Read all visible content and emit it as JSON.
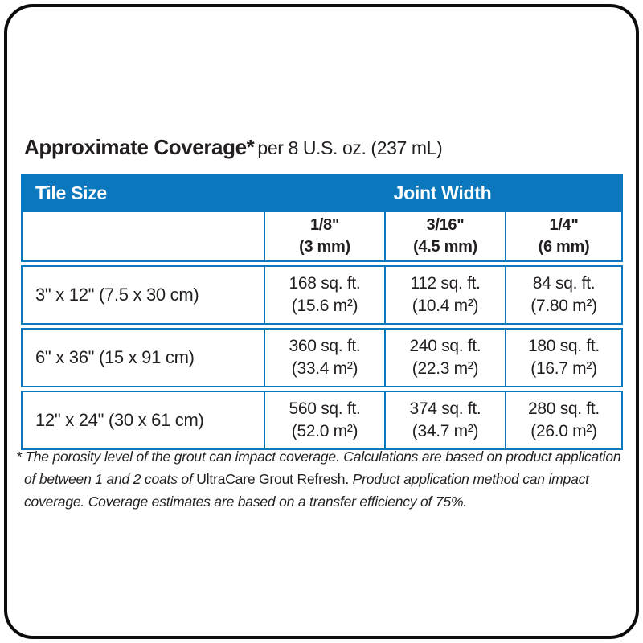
{
  "page": {
    "title_bold": "Approximate Coverage*",
    "title_rest": "per 8 U.S. oz. (237 mL)"
  },
  "colors": {
    "brand_blue": "#0b78bd",
    "header_text": "#ffffff",
    "body_text": "#231f20",
    "frame_border": "#0d0d0d"
  },
  "table": {
    "tile_size_header": "Tile Size",
    "joint_width_header": "Joint Width",
    "joint_widths": [
      {
        "inches": "1/8\"",
        "metric": "(3 mm)"
      },
      {
        "inches": "3/16\"",
        "metric": "(4.5 mm)"
      },
      {
        "inches": "1/4\"",
        "metric": "(6 mm)"
      }
    ],
    "rows": [
      {
        "tile": "3\" x 12\" (7.5 x 30 cm)",
        "coverage": [
          {
            "sqft": "168 sq. ft.",
            "m2": "(15.6 m²)"
          },
          {
            "sqft": "112 sq. ft.",
            "m2": "(10.4 m²)"
          },
          {
            "sqft": "84 sq. ft.",
            "m2": "(7.80 m²)"
          }
        ]
      },
      {
        "tile": "6\" x 36\" (15 x 91 cm)",
        "coverage": [
          {
            "sqft": "360 sq. ft.",
            "m2": "(33.4 m²)"
          },
          {
            "sqft": "240 sq. ft.",
            "m2": "(22.3 m²)"
          },
          {
            "sqft": "180 sq. ft.",
            "m2": "(16.7 m²)"
          }
        ]
      },
      {
        "tile": "12\" x 24\" (30 x 61 cm)",
        "coverage": [
          {
            "sqft": "560 sq. ft.",
            "m2": "(52.0 m²)"
          },
          {
            "sqft": "374 sq. ft.",
            "m2": "(34.7 m²)"
          },
          {
            "sqft": "280 sq. ft.",
            "m2": "(26.0 m²)"
          }
        ]
      }
    ]
  },
  "footnote": {
    "part1": "* The porosity level of the grout can impact coverage. Calculations are based on product application of between 1 and 2 coats of ",
    "brand": "UltraCare Grout Refresh.",
    "part2": " Product application method can impact coverage. Coverage estimates are based on a transfer efficiency of 75%."
  }
}
